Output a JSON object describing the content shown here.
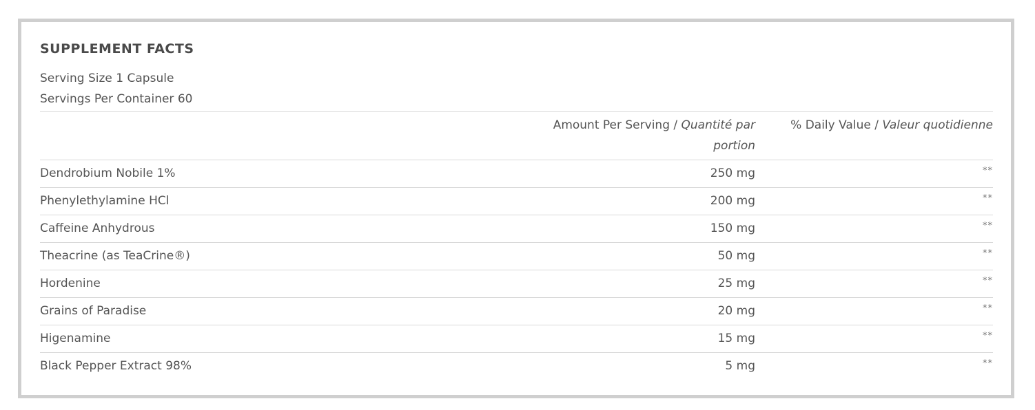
{
  "title": "SUPPLEMENT FACTS",
  "serving_size": "Serving Size 1 Capsule",
  "servings_per_container": "Servings Per Container 60",
  "headers": {
    "amount": "Amount Per Serving /",
    "amount_fr": "Quantité par portion",
    "daily_value": "% Daily Value /",
    "daily_value_fr": "Valeur quotidienne"
  },
  "ingredients": [
    {
      "name": "Dendrobium Nobile 1%",
      "amount": "250 mg",
      "dv": "**"
    },
    {
      "name": "Phenylethylamine HCl",
      "amount": "200 mg",
      "dv": "**"
    },
    {
      "name": "Caffeine Anhydrous",
      "amount": "150 mg",
      "dv": "**"
    },
    {
      "name": "Theacrine (as TeaCrine®)",
      "amount": "50 mg",
      "dv": "**"
    },
    {
      "name": "Hordenine",
      "amount": "25 mg",
      "dv": "**"
    },
    {
      "name": "Grains of Paradise",
      "amount": "20 mg",
      "dv": "**"
    },
    {
      "name": "Higenamine",
      "amount": "15 mg",
      "dv": "**"
    },
    {
      "name": "Black Pepper Extract 98%",
      "amount": "5 mg",
      "dv": "**"
    }
  ]
}
